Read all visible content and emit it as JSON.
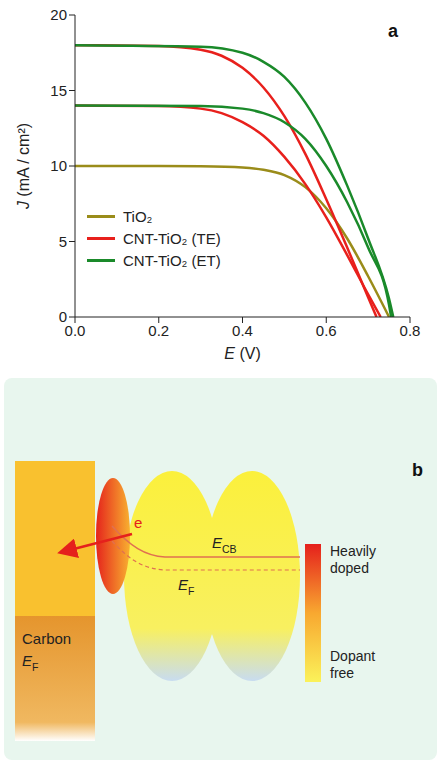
{
  "chart_data": {
    "type": "line",
    "panel_label": "a",
    "x_label": "E (V)",
    "y_label": "J (mA / cm²)",
    "xlim": [
      0,
      0.8
    ],
    "xticks": [
      {
        "value": 0,
        "label": "0.0"
      },
      0.2,
      0.4,
      0.6,
      0.8
    ],
    "ylim": [
      0,
      20
    ],
    "yticks": [
      0,
      5,
      10,
      15,
      20
    ],
    "grid": false,
    "legend": "lower left",
    "series": [
      {
        "name": "TiO₂",
        "color": "#9a8c1a",
        "x": [
          0,
          0.2,
          0.3,
          0.4,
          0.45,
          0.5,
          0.55,
          0.6,
          0.65,
          0.7,
          0.75
        ],
        "values": [
          10,
          10,
          9.98,
          9.9,
          9.75,
          9.4,
          8.6,
          7.2,
          5.2,
          2.7,
          0
        ]
      },
      {
        "name": "CNT-TiO₂ (TE)",
        "color": "#e8201c",
        "x": [
          0,
          0.2,
          0.3,
          0.35,
          0.4,
          0.45,
          0.5,
          0.55,
          0.6,
          0.65,
          0.7,
          0.72
        ],
        "values": [
          18,
          17.95,
          17.7,
          17.3,
          16.5,
          15.2,
          13.3,
          10.8,
          7.8,
          4.6,
          1.3,
          0
        ]
      },
      {
        "name": "CNT-TiO₂ (TE)",
        "color": "#e8201c",
        "x": [
          0,
          0.2,
          0.3,
          0.35,
          0.4,
          0.45,
          0.5,
          0.55,
          0.6,
          0.65,
          0.7,
          0.73
        ],
        "values": [
          14,
          13.97,
          13.8,
          13.5,
          12.9,
          12,
          10.6,
          8.8,
          6.6,
          4.1,
          1.5,
          0
        ]
      },
      {
        "name": "CNT-TiO₂ (ET)",
        "color": "#1a8a2a",
        "x": [
          0,
          0.3,
          0.4,
          0.45,
          0.5,
          0.55,
          0.6,
          0.65,
          0.7,
          0.75,
          0.76
        ],
        "values": [
          18,
          17.9,
          17.5,
          16.9,
          15.9,
          14.2,
          11.8,
          8.7,
          5.2,
          1.2,
          0
        ]
      },
      {
        "name": "CNT-TiO₂ (ET)",
        "color": "#1a8a2a",
        "x": [
          0,
          0.3,
          0.4,
          0.45,
          0.5,
          0.55,
          0.6,
          0.65,
          0.7,
          0.75,
          0.755
        ],
        "values": [
          14,
          13.98,
          13.8,
          13.5,
          12.9,
          11.8,
          10,
          7.6,
          4.6,
          0.8,
          0
        ]
      }
    ]
  },
  "diagram": {
    "panel_label": "b",
    "carbon": {
      "label": "Carbon",
      "level": {
        "main": "E",
        "sub": "F"
      }
    },
    "electron": "e",
    "conduction_band": {
      "main": "E",
      "sub": "CB"
    },
    "fermi_level": {
      "main": "E",
      "sub": "F"
    },
    "color_bar": {
      "top": "Heavily doped",
      "bottom": "Dopant free"
    }
  }
}
